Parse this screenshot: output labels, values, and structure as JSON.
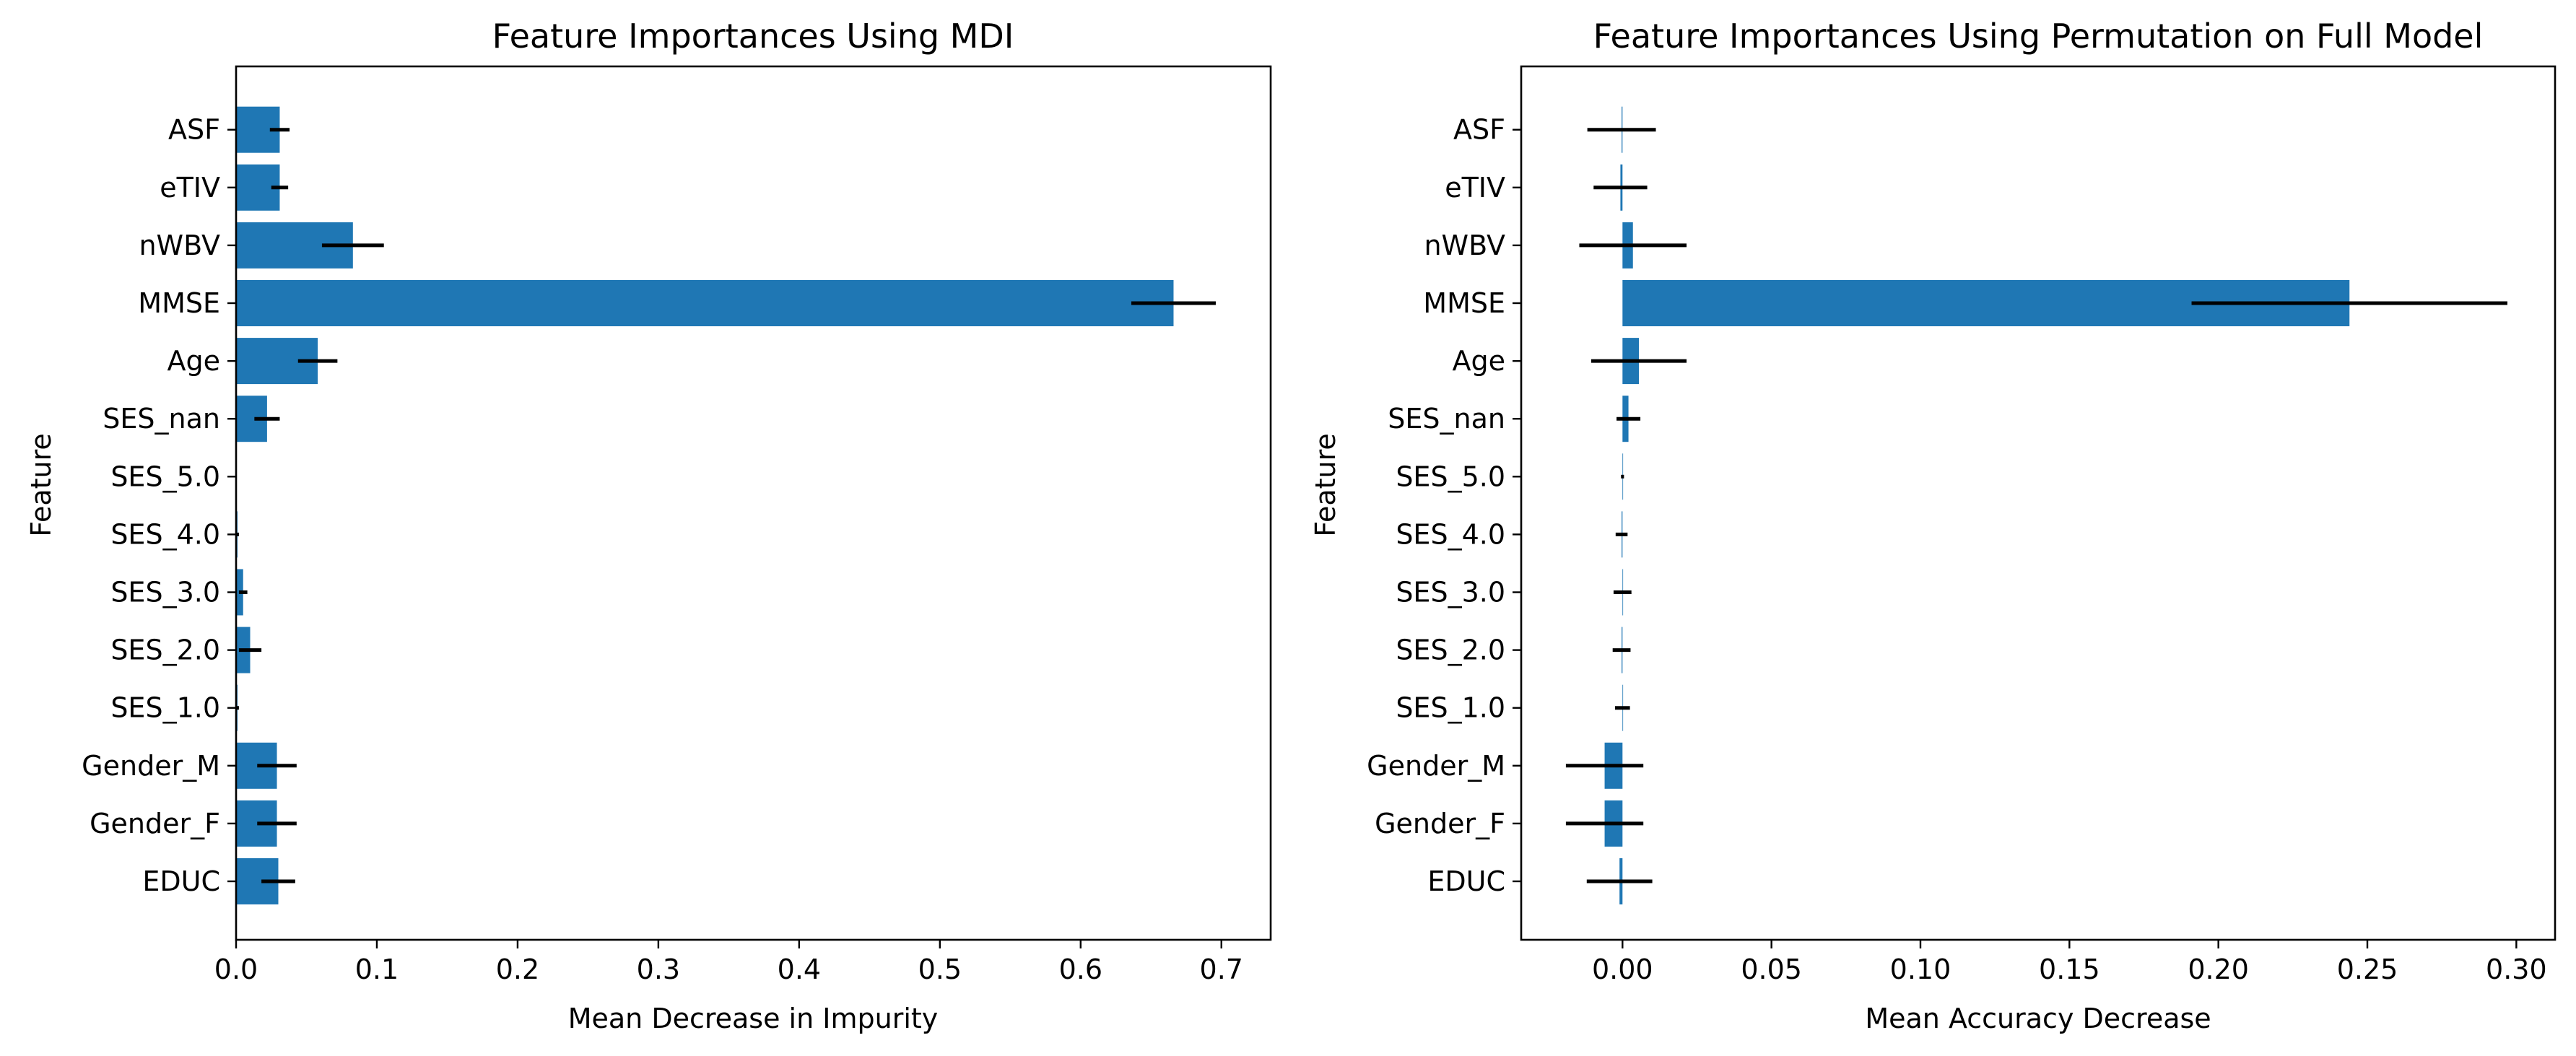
{
  "chart_data": [
    {
      "type": "bar",
      "orientation": "horizontal",
      "title": "Feature Importances Using MDI",
      "xlabel": "Mean Decrease in Impurity",
      "ylabel": "Feature",
      "categories": [
        "EDUC",
        "Gender_F",
        "Gender_M",
        "SES_1.0",
        "SES_2.0",
        "SES_3.0",
        "SES_4.0",
        "SES_5.0",
        "SES_nan",
        "Age",
        "MMSE",
        "nWBV",
        "eTIV",
        "ASF"
      ],
      "values": [
        0.03,
        0.029,
        0.029,
        0.001,
        0.01,
        0.005,
        0.001,
        0.0,
        0.022,
        0.058,
        0.666,
        0.083,
        0.031,
        0.031
      ],
      "errors": [
        0.012,
        0.014,
        0.014,
        0.001,
        0.008,
        0.003,
        0.001,
        0.0,
        0.009,
        0.014,
        0.03,
        0.022,
        0.006,
        0.007
      ],
      "xlim": [
        0.0,
        0.735
      ],
      "xticks": [
        0.0,
        0.1,
        0.2,
        0.3,
        0.4,
        0.5,
        0.6,
        0.7
      ],
      "xtick_labels": [
        "0.0",
        "0.1",
        "0.2",
        "0.3",
        "0.4",
        "0.5",
        "0.6",
        "0.7"
      ],
      "bar_color": "#1f77b4",
      "error_color": "#000000",
      "grid": false
    },
    {
      "type": "bar",
      "orientation": "horizontal",
      "title": "Feature Importances Using Permutation on Full Model",
      "xlabel": "Mean Accuracy Decrease",
      "ylabel": "Feature",
      "categories": [
        "EDUC",
        "Gender_F",
        "Gender_M",
        "SES_1.0",
        "SES_2.0",
        "SES_3.0",
        "SES_4.0",
        "SES_5.0",
        "SES_nan",
        "Age",
        "MMSE",
        "nWBV",
        "eTIV",
        "ASF"
      ],
      "values": [
        -0.001,
        -0.006,
        -0.006,
        0.0,
        -0.0003,
        0.0,
        -0.0003,
        0.0,
        0.002,
        0.0055,
        0.244,
        0.0035,
        -0.0007,
        -0.0003
      ],
      "errors": [
        0.011,
        0.013,
        0.013,
        0.0025,
        0.003,
        0.003,
        0.002,
        0.0005,
        0.004,
        0.016,
        0.053,
        0.018,
        0.009,
        0.0115
      ],
      "xlim": [
        -0.034,
        0.313
      ],
      "xticks": [
        0.0,
        0.05,
        0.1,
        0.15,
        0.2,
        0.25,
        0.3
      ],
      "xtick_labels": [
        "0.00",
        "0.05",
        "0.10",
        "0.15",
        "0.20",
        "0.25",
        "0.30"
      ],
      "bar_color": "#1f77b4",
      "error_color": "#000000",
      "grid": false
    }
  ]
}
